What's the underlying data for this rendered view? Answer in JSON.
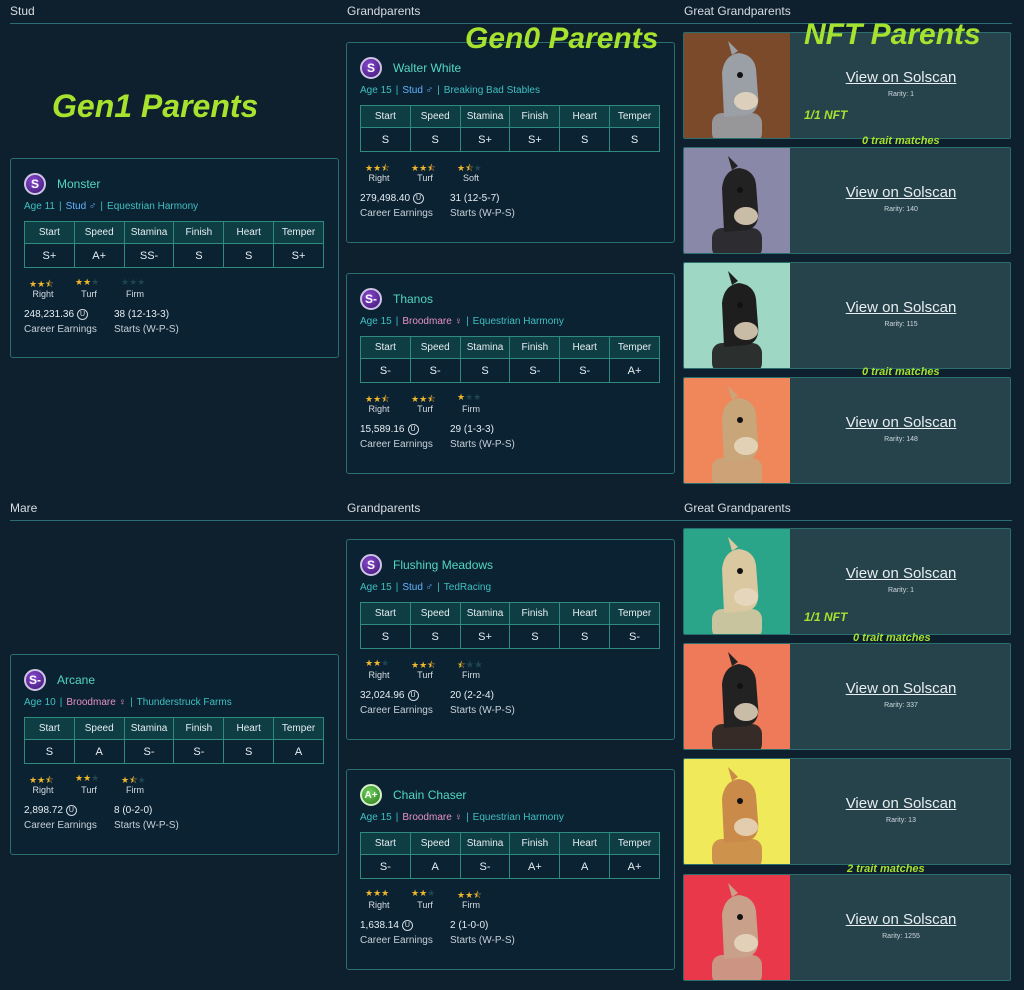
{
  "sections": {
    "stud": "Stud",
    "grandparents": "Grandparents",
    "great": "Great Grandparents",
    "mare": "Mare"
  },
  "overlays": {
    "gen1": "Gen1 Parents",
    "gen0": "Gen0 Parents",
    "nft": "NFT Parents",
    "one_of_one": "1/1 NFT",
    "zero_trait": "0 trait matches",
    "two_trait": "2 trait matches"
  },
  "stat_headers": [
    "Start",
    "Speed",
    "Stamina",
    "Finish",
    "Heart",
    "Temper"
  ],
  "career_label": "Career Earnings",
  "starts_label": "Starts (W-P-S)",
  "horses": {
    "monster": {
      "badge": "S",
      "name": "Monster",
      "age": "Age 11",
      "gender": "Stud ♂",
      "stable": "Equestrian Harmony",
      "stats": [
        "S+",
        "A+",
        "SS-",
        "S",
        "S",
        "S+"
      ],
      "pref": [
        {
          "label": "Right",
          "stars": 2.5
        },
        {
          "label": "Turf",
          "stars": 2
        },
        {
          "label": "Firm",
          "stars": 0
        }
      ],
      "earnings": "248,231.36",
      "starts": "38 (12-13-3)"
    },
    "walter": {
      "badge": "S",
      "name": "Walter White",
      "age": "Age 15",
      "gender": "Stud ♂",
      "stable": "Breaking Bad Stables",
      "stats": [
        "S",
        "S",
        "S+",
        "S+",
        "S",
        "S"
      ],
      "pref": [
        {
          "label": "Right",
          "stars": 2.5
        },
        {
          "label": "Turf",
          "stars": 2.5
        },
        {
          "label": "Soft",
          "stars": 1.5
        }
      ],
      "earnings": "279,498.40",
      "starts": "31 (12-5-7)"
    },
    "thanos": {
      "badge": "S-",
      "name": "Thanos",
      "age": "Age 15",
      "gender": "Broodmare ♀",
      "stable": "Equestrian Harmony",
      "stats": [
        "S-",
        "S-",
        "S",
        "S-",
        "S-",
        "A+"
      ],
      "pref": [
        {
          "label": "Right",
          "stars": 2.5
        },
        {
          "label": "Turf",
          "stars": 2.5
        },
        {
          "label": "Firm",
          "stars": 1
        }
      ],
      "earnings": "15,589.16",
      "starts": "29 (1-3-3)"
    },
    "arcane": {
      "badge": "S-",
      "name": "Arcane",
      "age": "Age 10",
      "gender": "Broodmare ♀",
      "stable": "Thunderstruck Farms",
      "stats": [
        "S",
        "A",
        "S-",
        "S-",
        "S",
        "A"
      ],
      "pref": [
        {
          "label": "Right",
          "stars": 2.5
        },
        {
          "label": "Turf",
          "stars": 2
        },
        {
          "label": "Firm",
          "stars": 1.5
        }
      ],
      "earnings": "2,898.72",
      "starts": "8 (0-2-0)"
    },
    "flushing": {
      "badge": "S",
      "name": "Flushing Meadows",
      "age": "Age 15",
      "gender": "Stud ♂",
      "stable": "TedRacing",
      "stats": [
        "S",
        "S",
        "S+",
        "S",
        "S",
        "S-"
      ],
      "pref": [
        {
          "label": "Right",
          "stars": 2
        },
        {
          "label": "Turf",
          "stars": 2.5
        },
        {
          "label": "Firm",
          "stars": 0.5
        }
      ],
      "earnings": "32,024.96",
      "starts": "20 (2-2-4)"
    },
    "chain": {
      "badge": "A+",
      "name": "Chain Chaser",
      "age": "Age 15",
      "gender": "Broodmare ♀",
      "stable": "Equestrian Harmony",
      "stats": [
        "S-",
        "A",
        "S-",
        "A+",
        "A",
        "A+"
      ],
      "pref": [
        {
          "label": "Right",
          "stars": 3
        },
        {
          "label": "Turf",
          "stars": 2
        },
        {
          "label": "Firm",
          "stars": 2.5
        }
      ],
      "earnings": "1,638.14",
      "starts": "2 (1-0-0)"
    }
  },
  "nfts": [
    {
      "link": "View on Solscan",
      "rarity": "Rarity: 1",
      "bg": "#7a4a2a",
      "horse": "#9aa0a6"
    },
    {
      "link": "View on Solscan",
      "rarity": "Rarity: 140",
      "bg": "#8a88a8",
      "horse": "#222222"
    },
    {
      "link": "View on Solscan",
      "rarity": "Rarity: 115",
      "bg": "#9ed8c4",
      "horse": "#1e1e1e"
    },
    {
      "link": "View on Solscan",
      "rarity": "Rarity: 148",
      "bg": "#f0875a",
      "horse": "#c9a57a"
    },
    {
      "link": "View on Solscan",
      "rarity": "Rarity: 1",
      "bg": "#2aa58a",
      "horse": "#d9c8a0"
    },
    {
      "link": "View on Solscan",
      "rarity": "Rarity: 337",
      "bg": "#ef7a5a",
      "horse": "#222222"
    },
    {
      "link": "View on Solscan",
      "rarity": "Rarity: 13",
      "bg": "#f0ea5a",
      "horse": "#c98a4a"
    },
    {
      "link": "View on Solscan",
      "rarity": "Rarity: 1255",
      "bg": "#e8384a",
      "horse": "#c9a08a"
    }
  ]
}
